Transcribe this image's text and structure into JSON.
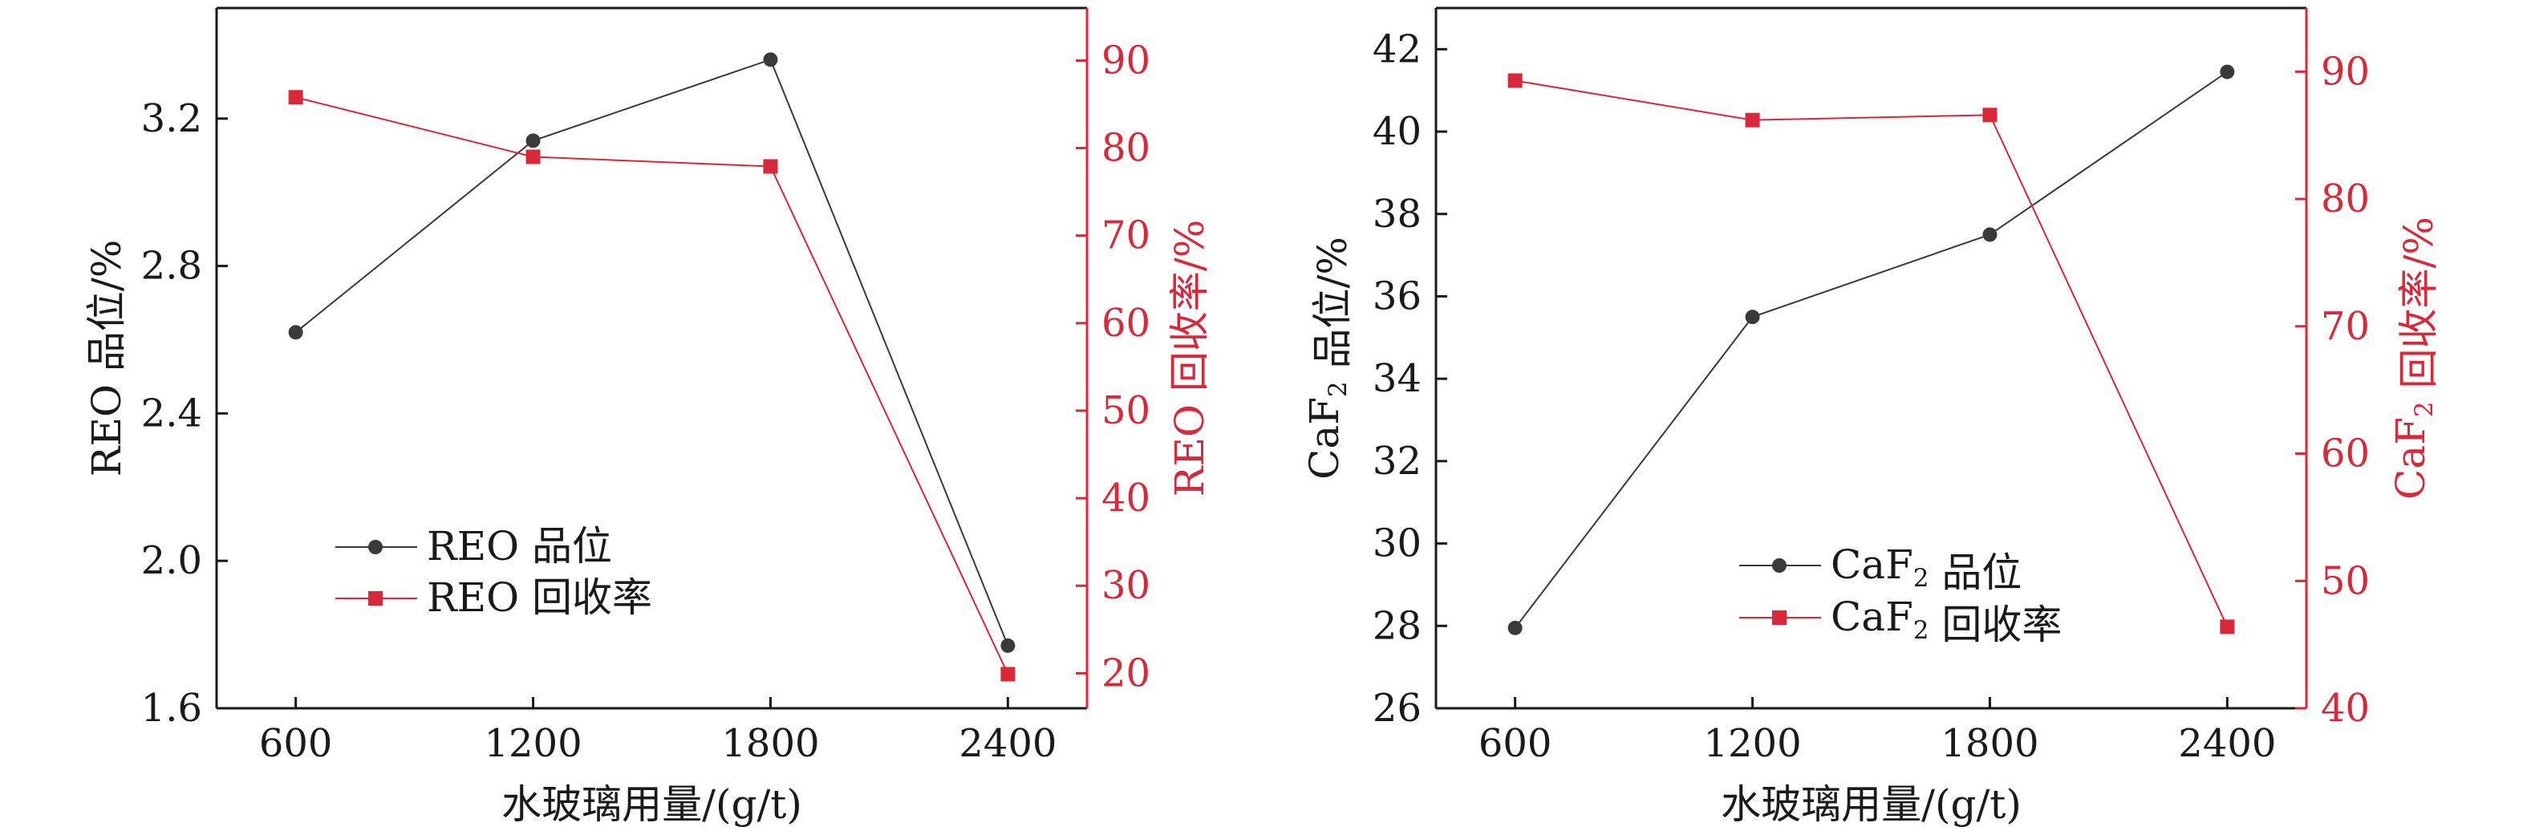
{
  "colors": {
    "grade": "#3a3a3a",
    "recovery": "#d8283a",
    "axis": "#1a1a1a"
  },
  "chart_data": [
    {
      "type": "line",
      "x": [
        600,
        1200,
        1800,
        2400
      ],
      "xticks": [
        "600",
        "1200",
        "1800",
        "2400"
      ],
      "xlabel": "水玻璃用量/(g/t)",
      "xlim": [
        400,
        2600
      ],
      "ylabel_left": "REO 品位/%",
      "ylabel_right": "REO 回收率/%",
      "ylim_left": [
        1.6,
        3.5
      ],
      "yticks_left": [
        "1.6",
        "2.0",
        "2.4",
        "2.8",
        "3.2"
      ],
      "ylim_right": [
        16,
        96
      ],
      "yticks_right": [
        "20",
        "30",
        "40",
        "50",
        "60",
        "70",
        "80",
        "90"
      ],
      "legend_position": "lower-left",
      "series": [
        {
          "name": "REO 品位",
          "axis": "left",
          "marker": "circle",
          "values": [
            2.62,
            3.14,
            3.36,
            1.77
          ]
        },
        {
          "name": "REO 回收率",
          "axis": "right",
          "marker": "square",
          "values": [
            85.8,
            79.0,
            77.9,
            19.9
          ]
        }
      ]
    },
    {
      "type": "line",
      "x": [
        600,
        1200,
        1800,
        2400
      ],
      "xticks": [
        "600",
        "1200",
        "1800",
        "2400"
      ],
      "xlabel": "水玻璃用量/(g/t)",
      "xlim": [
        400,
        2600
      ],
      "ylabel_left": "CaF2 品位/%",
      "ylabel_right": "CaF2 回收率/%",
      "ylim_left": [
        26,
        43
      ],
      "yticks_left": [
        "26",
        "28",
        "30",
        "32",
        "34",
        "36",
        "38",
        "40",
        "42"
      ],
      "ylim_right": [
        40,
        95
      ],
      "yticks_right": [
        "40",
        "50",
        "60",
        "70",
        "80",
        "90"
      ],
      "legend_position": "lower-center",
      "series": [
        {
          "name": "CaF2 品位",
          "axis": "left",
          "marker": "circle",
          "values": [
            27.95,
            35.5,
            37.5,
            41.45
          ]
        },
        {
          "name": "CaF2 回收率",
          "axis": "right",
          "marker": "square",
          "values": [
            89.3,
            86.2,
            86.6,
            46.4
          ]
        }
      ]
    }
  ]
}
